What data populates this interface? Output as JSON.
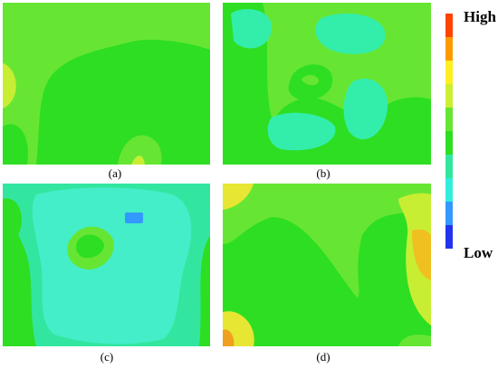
{
  "panels": [
    {
      "label": "(a)"
    },
    {
      "label": "(b)"
    },
    {
      "label": "(c)"
    },
    {
      "label": "(d)"
    }
  ],
  "legend": {
    "high": "High",
    "low": "Low"
  }
}
